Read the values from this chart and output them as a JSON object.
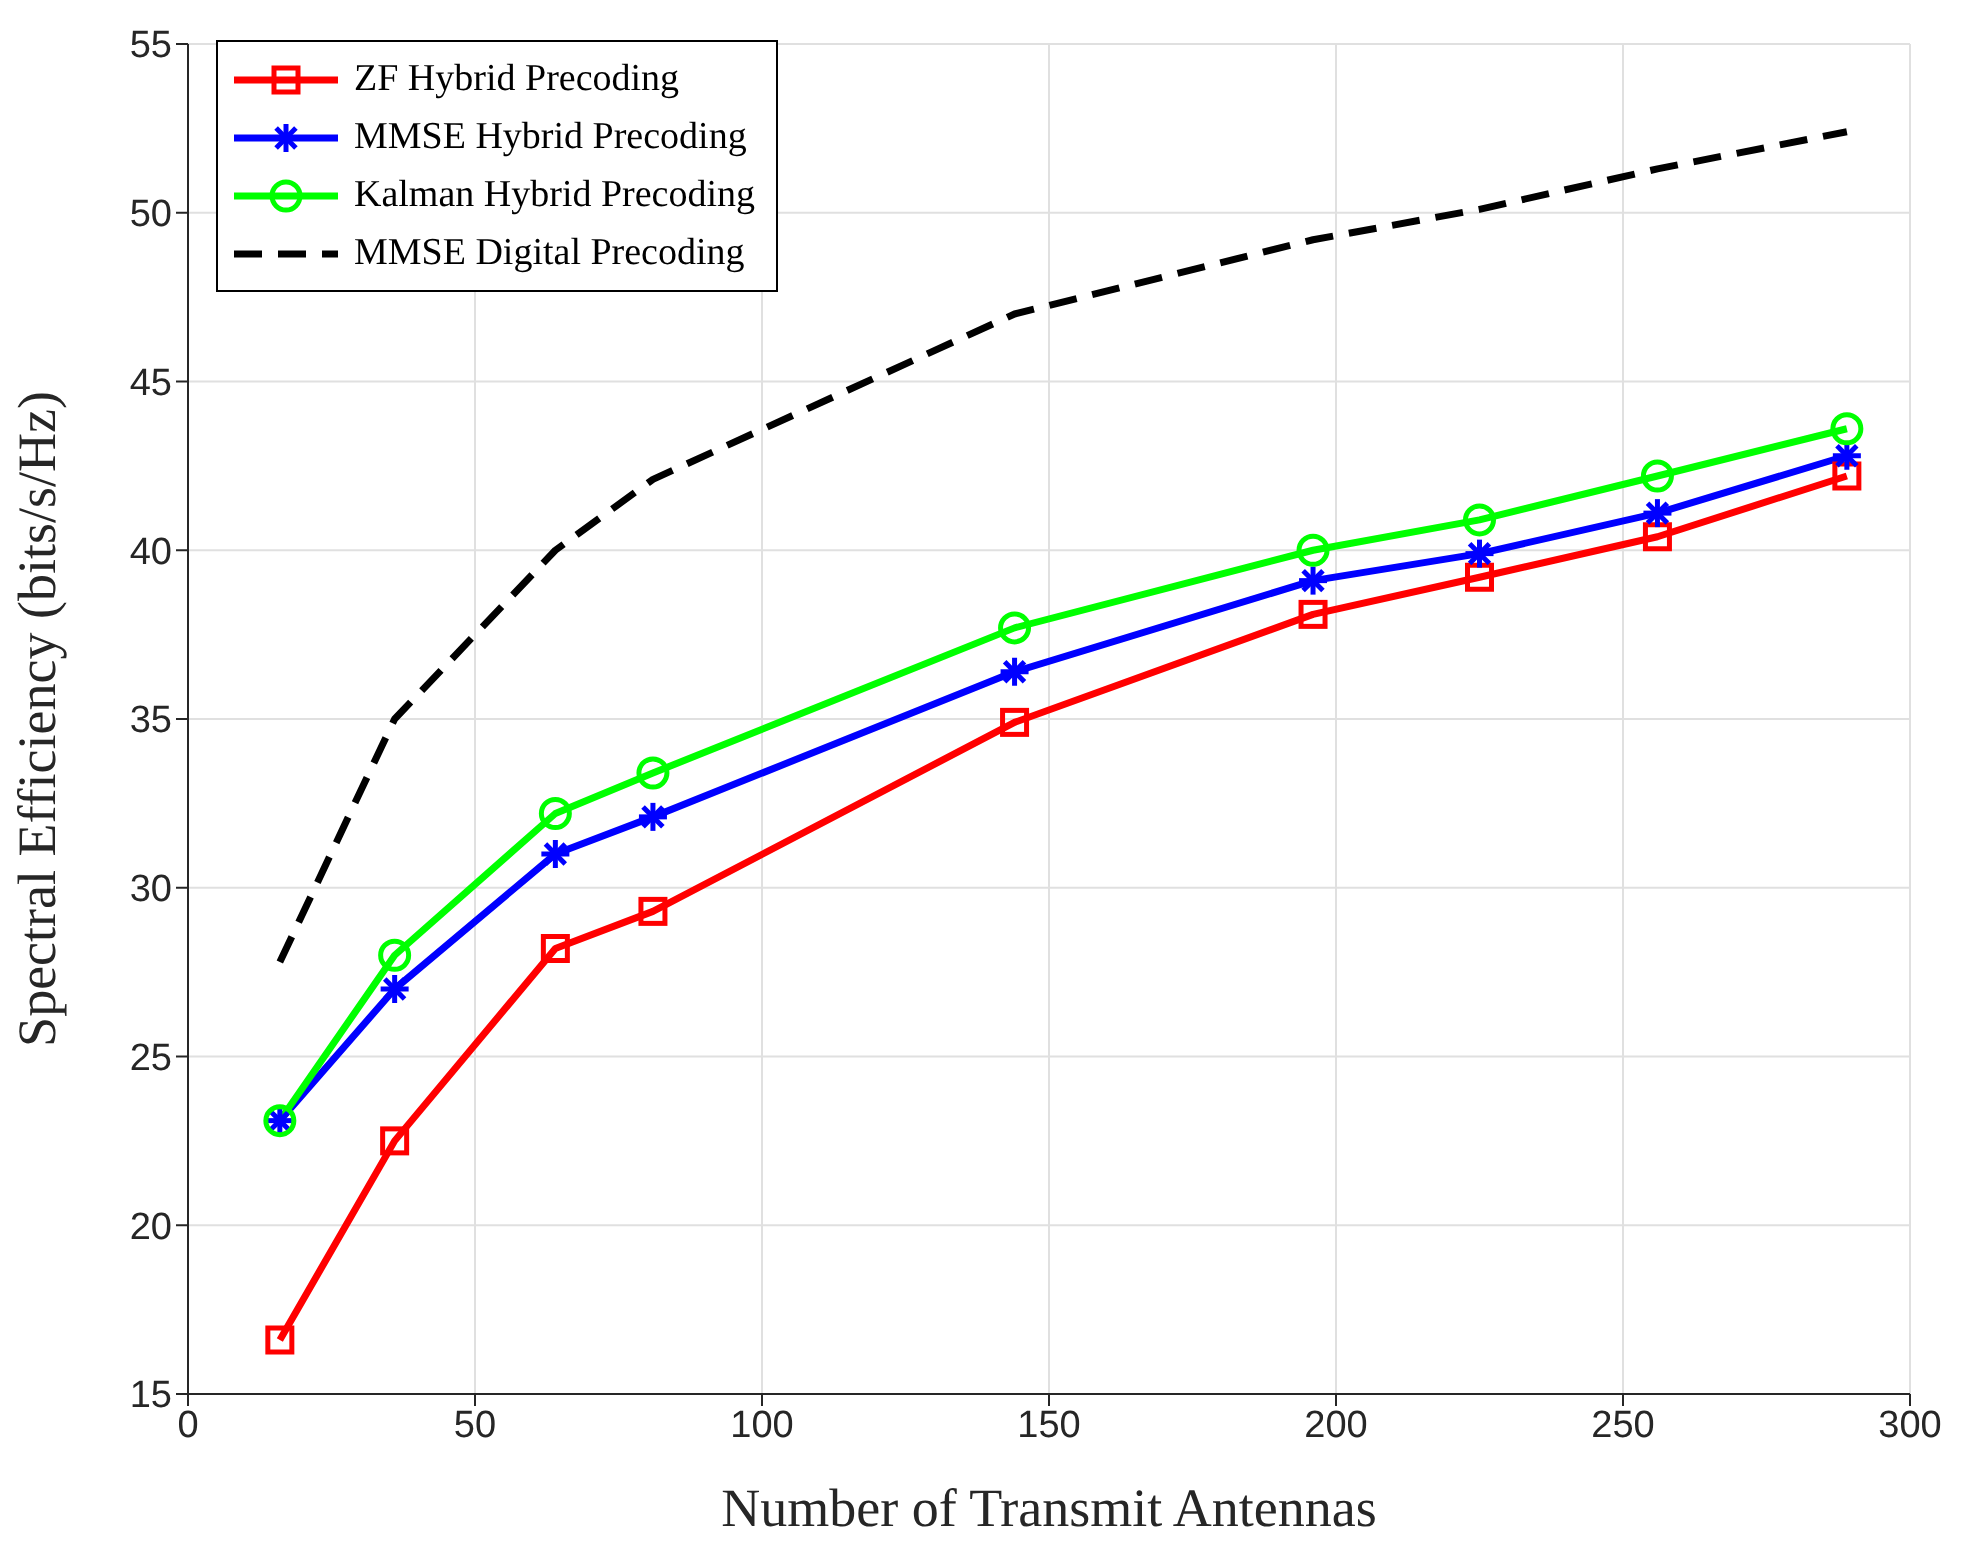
{
  "chart_data": {
    "type": "line",
    "xlabel": "Number of Transmit Antennas",
    "ylabel": "Spectral Efficiency (bits/s/Hz)",
    "x": [
      16,
      36,
      64,
      81,
      144,
      196,
      225,
      256,
      289
    ],
    "series": [
      {
        "name": "ZF Hybrid Precoding",
        "color": "#ff0000",
        "marker": "square",
        "line_style": "solid",
        "values": [
          16.6,
          22.5,
          28.2,
          29.3,
          34.9,
          38.1,
          39.2,
          40.4,
          42.2
        ]
      },
      {
        "name": "MMSE Hybrid Precoding",
        "color": "#0000ff",
        "marker": "cross",
        "line_style": "solid",
        "values": [
          23.1,
          27.0,
          31.0,
          32.1,
          36.4,
          39.1,
          39.9,
          41.1,
          42.8
        ]
      },
      {
        "name": "Kalman Hybrid Precoding",
        "color": "#00ff00",
        "marker": "circle",
        "line_style": "solid",
        "values": [
          23.1,
          28.0,
          32.2,
          33.4,
          37.7,
          40.0,
          40.9,
          42.2,
          43.6
        ]
      },
      {
        "name": "MMSE Digital Precoding",
        "color": "#000000",
        "marker": "none",
        "line_style": "dashed",
        "values": [
          27.8,
          35.0,
          40.0,
          42.1,
          47.0,
          49.2,
          50.1,
          51.3,
          52.4
        ]
      }
    ],
    "xlim": [
      0,
      300
    ],
    "xticks": [
      0,
      50,
      100,
      150,
      200,
      250,
      300
    ],
    "ylim": [
      15,
      55
    ],
    "yticks": [
      15,
      20,
      25,
      30,
      35,
      40,
      45,
      50,
      55
    ],
    "grid": true,
    "legend": "top left"
  }
}
